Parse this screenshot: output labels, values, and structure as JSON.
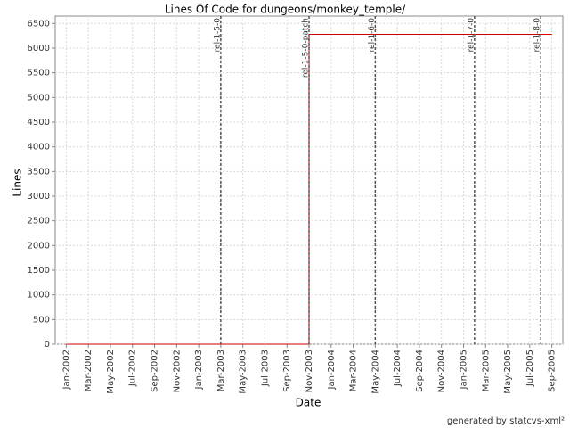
{
  "chart_data": {
    "type": "line",
    "title": "Lines Of Code for dungeons/monkey_temple/",
    "xlabel": "Date",
    "ylabel": "Lines",
    "x": [
      "2002-01",
      "2003-11",
      "2003-11",
      "2005-09"
    ],
    "values": [
      0,
      0,
      6280,
      6280
    ],
    "color": "#cc0000",
    "xlim": [
      "2001-12",
      "2005-10"
    ],
    "ylim": [
      0,
      6650
    ],
    "xticks": [
      {
        "value": "2002-01",
        "label": "Jan-2002"
      },
      {
        "value": "2002-03",
        "label": "Mar-2002"
      },
      {
        "value": "2002-05",
        "label": "May-2002"
      },
      {
        "value": "2002-07",
        "label": "Jul-2002"
      },
      {
        "value": "2002-09",
        "label": "Sep-2002"
      },
      {
        "value": "2002-11",
        "label": "Nov-2002"
      },
      {
        "value": "2003-01",
        "label": "Jan-2003"
      },
      {
        "value": "2003-03",
        "label": "Mar-2003"
      },
      {
        "value": "2003-05",
        "label": "May-2003"
      },
      {
        "value": "2003-07",
        "label": "Jul-2003"
      },
      {
        "value": "2003-09",
        "label": "Sep-2003"
      },
      {
        "value": "2003-11",
        "label": "Nov-2003"
      },
      {
        "value": "2004-01",
        "label": "Jan-2004"
      },
      {
        "value": "2004-03",
        "label": "Mar-2004"
      },
      {
        "value": "2004-05",
        "label": "May-2004"
      },
      {
        "value": "2004-07",
        "label": "Jul-2004"
      },
      {
        "value": "2004-09",
        "label": "Sep-2004"
      },
      {
        "value": "2004-11",
        "label": "Nov-2004"
      },
      {
        "value": "2005-01",
        "label": "Jan-2005"
      },
      {
        "value": "2005-03",
        "label": "Mar-2005"
      },
      {
        "value": "2005-05",
        "label": "May-2005"
      },
      {
        "value": "2005-07",
        "label": "Jul-2005"
      },
      {
        "value": "2005-09",
        "label": "Sep-2005"
      }
    ],
    "yticks": [
      0,
      500,
      1000,
      1500,
      2000,
      2500,
      3000,
      3500,
      4000,
      4500,
      5000,
      5500,
      6000,
      6500
    ],
    "grid": true,
    "markers": [
      {
        "label": "rel-1-5-0",
        "x": "2003-03"
      },
      {
        "label": "rel-1-5-0-patch",
        "x": "2003-11"
      },
      {
        "label": "rel-1-6-0",
        "x": "2004-05"
      },
      {
        "label": "rel-1-7-0",
        "x": "2005-02"
      },
      {
        "label": "rel-1-8-0",
        "x": "2005-08"
      }
    ]
  },
  "footer": "generated by statcvs-xml²"
}
